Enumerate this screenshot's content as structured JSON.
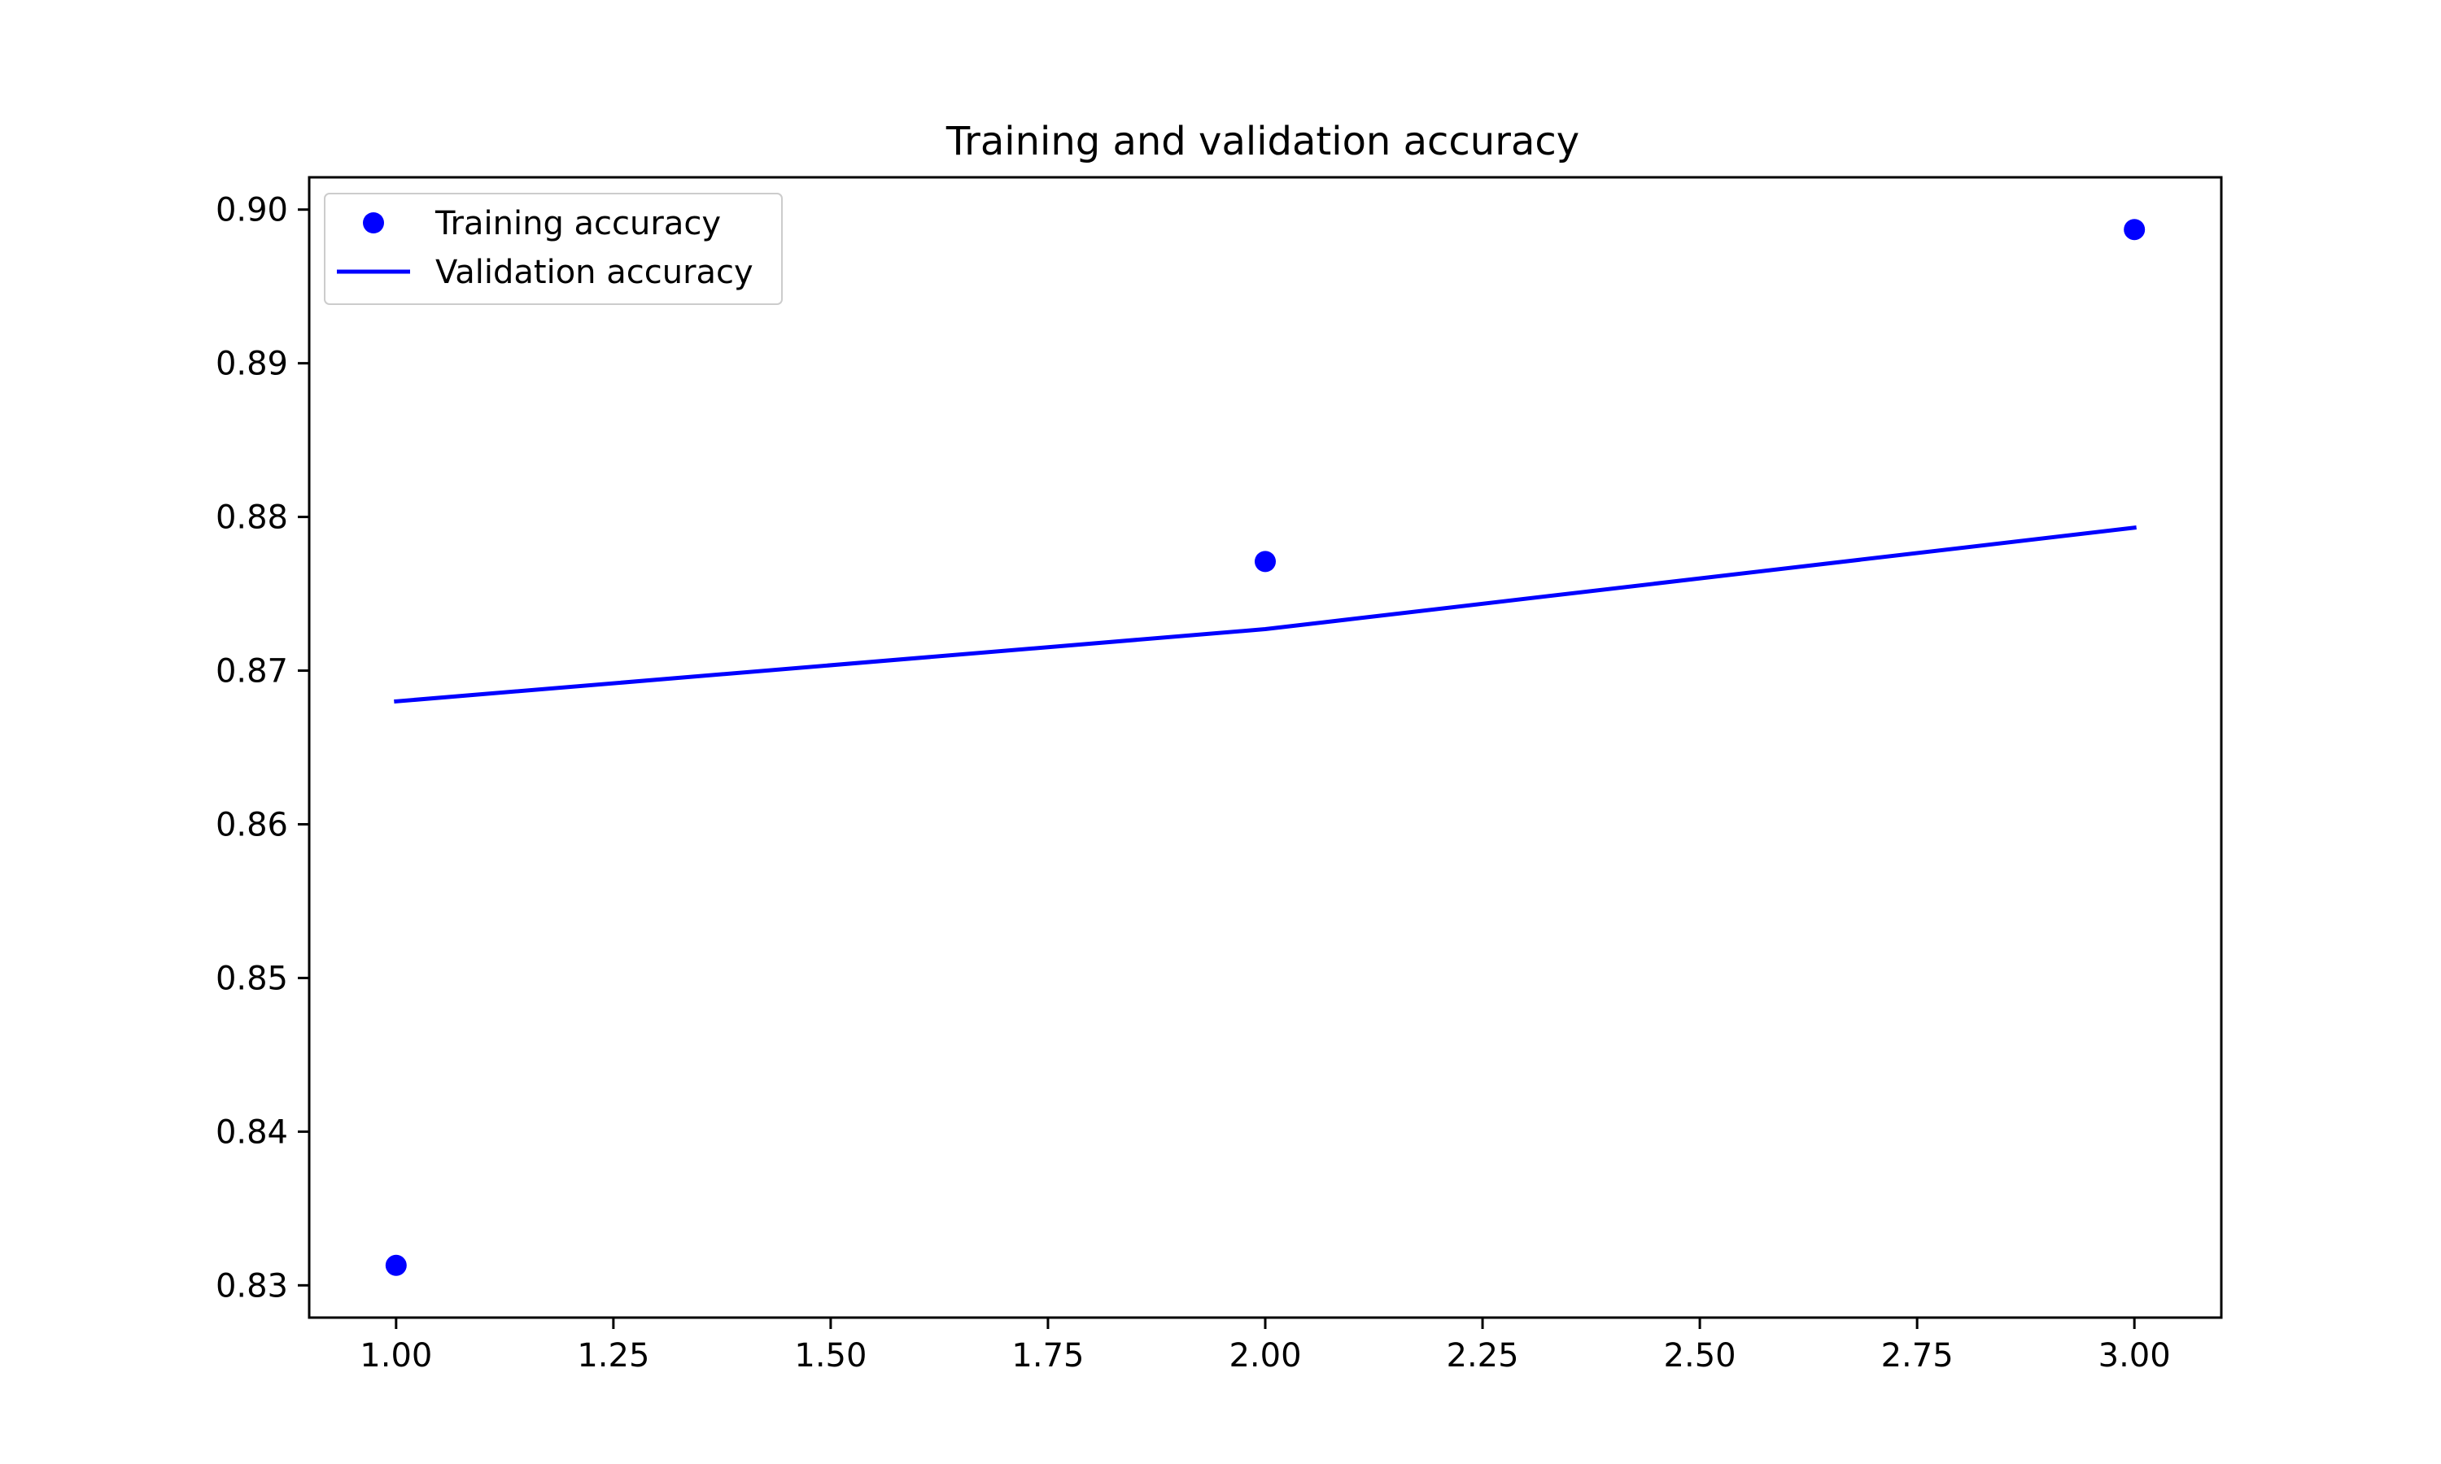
{
  "chart_data": {
    "type": "line",
    "title": "Training and validation accuracy",
    "xlabel": "",
    "ylabel": "",
    "xlim": [
      0.9,
      3.1
    ],
    "ylim": [
      0.8279,
      0.9021
    ],
    "x_ticks": [
      1.0,
      1.25,
      1.5,
      1.75,
      2.0,
      2.25,
      2.5,
      2.75,
      3.0
    ],
    "x_tick_labels": [
      "1.00",
      "1.25",
      "1.50",
      "1.75",
      "2.00",
      "2.25",
      "2.50",
      "2.75",
      "3.00"
    ],
    "y_ticks": [
      0.83,
      0.84,
      0.85,
      0.86,
      0.87,
      0.88,
      0.89,
      0.9
    ],
    "y_tick_labels": [
      "0.83",
      "0.84",
      "0.85",
      "0.86",
      "0.87",
      "0.88",
      "0.89",
      "0.90"
    ],
    "grid": false,
    "legend_position": "top-left",
    "series": [
      {
        "name": "Training accuracy",
        "style": "markers",
        "color": "#0000ff",
        "x": [
          1,
          2,
          3
        ],
        "y": [
          0.8313,
          0.8771,
          0.8987
        ]
      },
      {
        "name": "Validation accuracy",
        "style": "line",
        "color": "#0000ff",
        "x": [
          1,
          2,
          3
        ],
        "y": [
          0.868,
          0.8727,
          0.8793
        ]
      }
    ]
  }
}
